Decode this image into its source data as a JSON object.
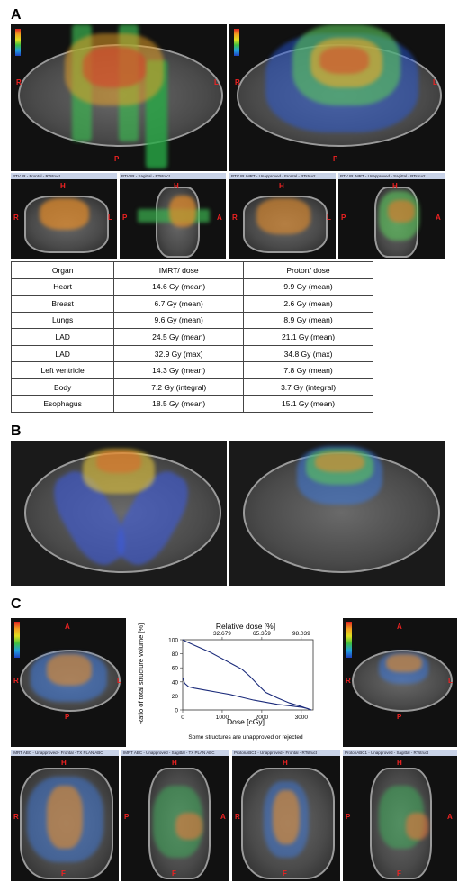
{
  "panels": {
    "a": "A",
    "b": "B",
    "c": "C"
  },
  "directions": {
    "r": "R",
    "l": "L",
    "p": "P",
    "a": "A",
    "h": "H",
    "f": "F"
  },
  "panel_a": {
    "view_bars": [
      "PTV IR - Frontal - RTstruct",
      "PTV IR - Sagittal - RTstruct",
      "PTV IR IMRT - Unapproved - Frontal - RTstruct",
      "PTV IR IMRT - Unapproved - Sagittal - RTstruct"
    ]
  },
  "dose_table": {
    "headers": [
      "Organ",
      "IMRT/ dose",
      "Proton/ dose"
    ],
    "rows": [
      [
        "Heart",
        "14.6 Gy (mean)",
        "9.9 Gy (mean)"
      ],
      [
        "Breast",
        "6.7 Gy (mean)",
        "2.6 Gy (mean)"
      ],
      [
        "Lungs",
        "9.6 Gy (mean)",
        "8.9 Gy (mean)"
      ],
      [
        "LAD",
        "24.5 Gy (mean)",
        "21.1 Gy (mean)"
      ],
      [
        "LAD",
        "32.9 Gy (max)",
        "34.8 Gy (max)"
      ],
      [
        "Left ventricle",
        "14.3 Gy (mean)",
        "7.8 Gy (mean)"
      ],
      [
        "Body",
        "7.2 Gy (integral)",
        "3.7 Gy (integral)"
      ],
      [
        "Esophagus",
        "18.5 Gy (mean)",
        "15.1 Gy (mean)"
      ]
    ]
  },
  "panel_c": {
    "view_bars": [
      "IMRT ABC - Unapproved - Frontal - TX PLAN ABC",
      "IMRT ABC - Unapproved - Sagittal - TX PLAN ABC",
      "ProtonABC1 - Unapproved - Frontal - RTstruct",
      "ProtonABC1 - Unapproved - Sagittal - RTstruct"
    ],
    "note": "Some structures are unapproved or rejected"
  },
  "chart_data": {
    "type": "line",
    "title": "",
    "xlabel": "Dose [cGy]",
    "ylabel": "Ratio of total structure volume [%]",
    "top_axis_label": "Relative dose [%]",
    "top_ticks": [
      "32.679",
      "65.359",
      "98.039"
    ],
    "top_tick_positions_cgy": [
      1000,
      2000,
      3000
    ],
    "x_ticks": [
      "0",
      "1000",
      "2000",
      "3000"
    ],
    "y_ticks": [
      "0",
      "20",
      "40",
      "60",
      "80",
      "100"
    ],
    "xlim": [
      0,
      3300
    ],
    "ylim": [
      0,
      100
    ],
    "series": [
      {
        "x": [
          0,
          100,
          300,
          500,
          700,
          900,
          1100,
          1300,
          1500,
          1700,
          1900,
          2100,
          2400,
          2700,
          3000,
          3150,
          3250
        ],
        "y": [
          100,
          97,
          92,
          87,
          82,
          76,
          70,
          64,
          58,
          48,
          36,
          25,
          17,
          10,
          5,
          2,
          0
        ]
      },
      {
        "x": [
          0,
          50,
          150,
          300,
          600,
          900,
          1200,
          1500,
          1800,
          2100,
          2400,
          2700,
          3000,
          3150,
          3250
        ],
        "y": [
          46,
          38,
          33,
          31,
          28,
          25,
          22,
          18,
          14,
          11,
          8,
          6,
          4,
          2,
          0
        ]
      }
    ]
  }
}
